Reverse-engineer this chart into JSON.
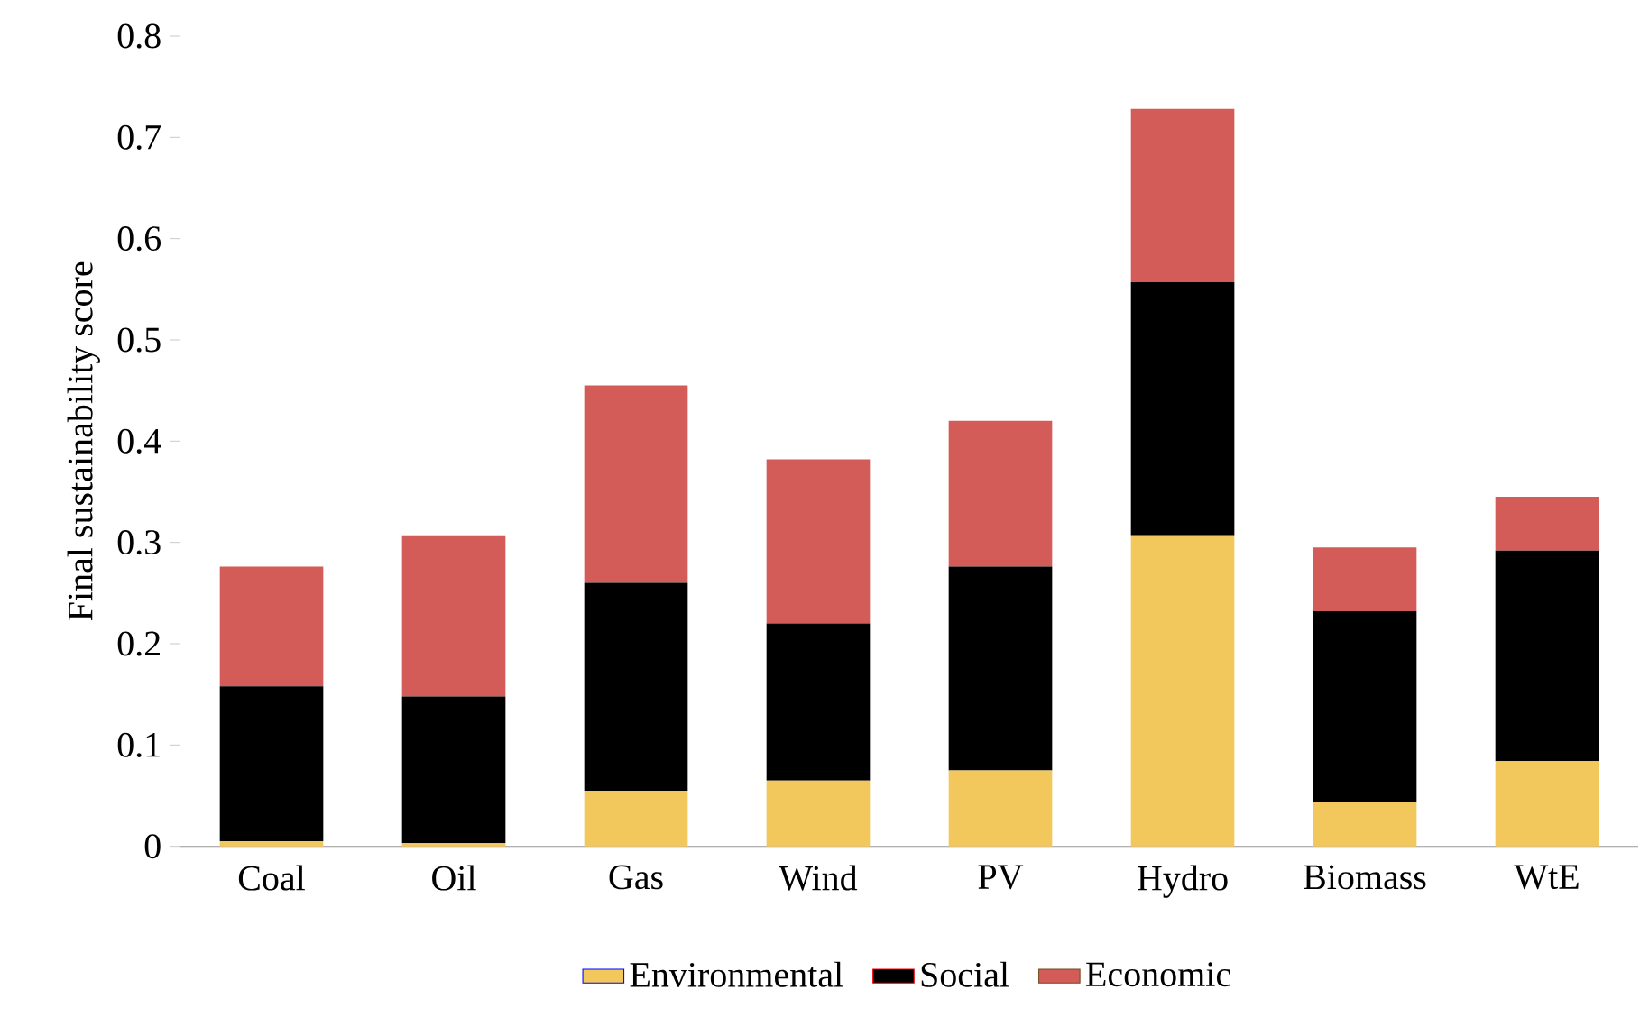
{
  "chart_data": {
    "type": "bar",
    "stacked": true,
    "ylabel": "Final sustainability score",
    "categories": [
      "Coal",
      "Oil",
      "Gas",
      "Wind",
      "PV",
      "Hydro",
      "Biomass",
      "WtE"
    ],
    "series": [
      {
        "name": "Environmental",
        "color": "#f2c75c",
        "values": [
          0.005,
          0.003,
          0.055,
          0.065,
          0.075,
          0.307,
          0.044,
          0.084
        ]
      },
      {
        "name": "Social",
        "color": "#000000",
        "values": [
          0.153,
          0.145,
          0.205,
          0.155,
          0.201,
          0.25,
          0.188,
          0.208
        ]
      },
      {
        "name": "Economic",
        "color": "#d35b58",
        "values": [
          0.118,
          0.159,
          0.195,
          0.162,
          0.144,
          0.171,
          0.063,
          0.053
        ]
      }
    ],
    "ylim": [
      0,
      0.8
    ],
    "yticks": [
      0,
      0.1,
      0.2,
      0.3,
      0.4,
      0.5,
      0.6,
      0.7,
      0.8
    ],
    "grid": false,
    "legend": "bottom"
  }
}
